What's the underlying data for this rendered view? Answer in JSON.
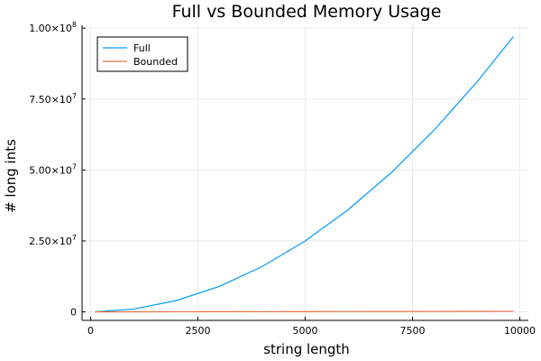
{
  "chart_data": {
    "type": "line",
    "title": "Full vs Bounded Memory Usage",
    "xlabel": "string length",
    "ylabel": "# long ints",
    "xlim": [
      -200,
      10200
    ],
    "ylim": [
      -3000000,
      101000000
    ],
    "x_ticks": [
      {
        "value": 0,
        "label": "0"
      },
      {
        "value": 2500,
        "label": "2500"
      },
      {
        "value": 5000,
        "label": "5000"
      },
      {
        "value": 7500,
        "label": "7500"
      },
      {
        "value": 10000,
        "label": "10000"
      }
    ],
    "y_ticks": [
      {
        "value": 0,
        "mantissa": "0",
        "exp": ""
      },
      {
        "value": 25000000,
        "mantissa": "2.50×10",
        "exp": "7"
      },
      {
        "value": 50000000,
        "mantissa": "5.00×10",
        "exp": "7"
      },
      {
        "value": 75000000,
        "mantissa": "7.50×10",
        "exp": "7"
      },
      {
        "value": 100000000,
        "mantissa": "1.00×10",
        "exp": "8"
      }
    ],
    "grid": true,
    "legend_position": "top-left",
    "series": [
      {
        "name": "Full",
        "color": "#009af9",
        "x": [
          100,
          1000,
          2000,
          3000,
          4000,
          5000,
          6000,
          7000,
          8000,
          9000,
          9850
        ],
        "y": [
          10000,
          1000000,
          4000000,
          9000000,
          16000000,
          25000000,
          36000000,
          49000000,
          64000000,
          81000000,
          97000000
        ]
      },
      {
        "name": "Bounded",
        "color": "#e26f46",
        "x": [
          100,
          1000,
          2000,
          3000,
          4000,
          5000,
          6000,
          7000,
          8000,
          9000,
          9850
        ],
        "y": [
          0,
          20000,
          40000,
          60000,
          80000,
          100000,
          120000,
          140000,
          160000,
          180000,
          200000
        ]
      }
    ]
  }
}
